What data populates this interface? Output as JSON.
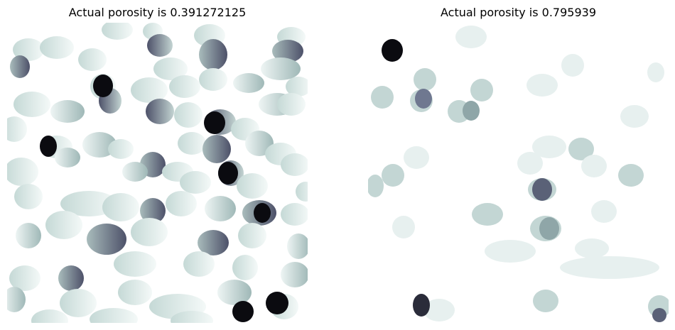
{
  "panels": [
    {
      "title": "Actual porosity is 0.391272125"
    },
    {
      "title": "Actual porosity is 0.795939"
    }
  ],
  "colors": {
    "background": "#ffffff",
    "pale": "#e8f2f0",
    "light": "#c9dcd9",
    "mid": "#8fa6a8",
    "dark": "#5a6177",
    "black": "#0b0b10"
  }
}
